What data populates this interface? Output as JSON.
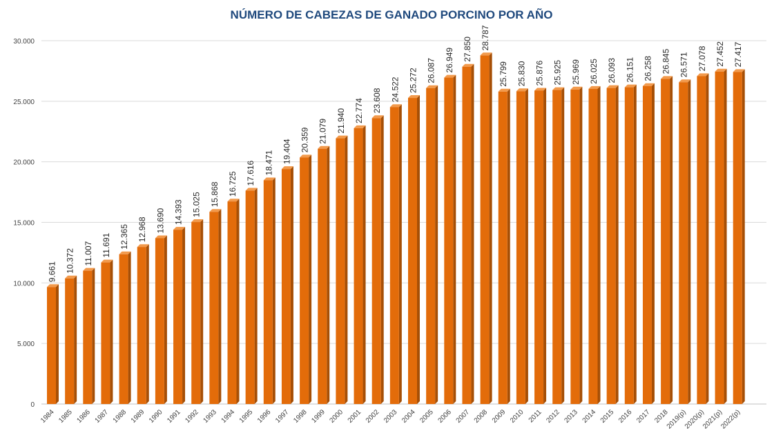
{
  "chart_data": {
    "type": "bar",
    "title": "NÚMERO DE CABEZAS DE GANADO PORCINO POR AÑO",
    "xlabel": "",
    "ylabel": "",
    "ylim": [
      0,
      30000
    ],
    "yticks": [
      0,
      5000,
      10000,
      15000,
      20000,
      25000,
      30000
    ],
    "ytick_labels": [
      "0",
      "5.000",
      "10.000",
      "15.000",
      "20.000",
      "25.000",
      "30.000"
    ],
    "grid": true,
    "bar_color": "#e36c0a",
    "categories": [
      "1984",
      "1985",
      "1986",
      "1987",
      "1988",
      "1989",
      "1990",
      "1991",
      "1992",
      "1993",
      "1994",
      "1995",
      "1996",
      "1997",
      "1998",
      "1999",
      "2000",
      "2001",
      "2002",
      "2003",
      "2004",
      "2005",
      "2006",
      "2007",
      "2008",
      "2009",
      "2010",
      "2011",
      "2012",
      "2013",
      "2014",
      "2015",
      "2016",
      "2017",
      "2018",
      "2019(p)",
      "2020(p)",
      "2021(p)",
      "2022(p)"
    ],
    "values": [
      9661,
      10372,
      11007,
      11691,
      12365,
      12968,
      13690,
      14393,
      15025,
      15868,
      16725,
      17616,
      18471,
      19404,
      20359,
      21079,
      21940,
      22774,
      23608,
      24522,
      25272,
      26087,
      26949,
      27850,
      28787,
      25799,
      25830,
      25876,
      25925,
      25969,
      26025,
      26093,
      26151,
      26258,
      26845,
      26571,
      27078,
      27452,
      27417
    ],
    "data_labels": [
      "9.661",
      "10.372",
      "11.007",
      "11.691",
      "12.365",
      "12.968",
      "13.690",
      "14.393",
      "15.025",
      "15.868",
      "16.725",
      "17.616",
      "18.471",
      "19.404",
      "20.359",
      "21.079",
      "21.940",
      "22.774",
      "23.608",
      "24.522",
      "25.272",
      "26.087",
      "26.949",
      "27.850",
      "28.787",
      "25.799",
      "25.830",
      "25.876",
      "25.925",
      "25.969",
      "26.025",
      "26.093",
      "26.151",
      "26.258",
      "26.845",
      "26.571",
      "27.078",
      "27.452",
      "27.417"
    ]
  }
}
